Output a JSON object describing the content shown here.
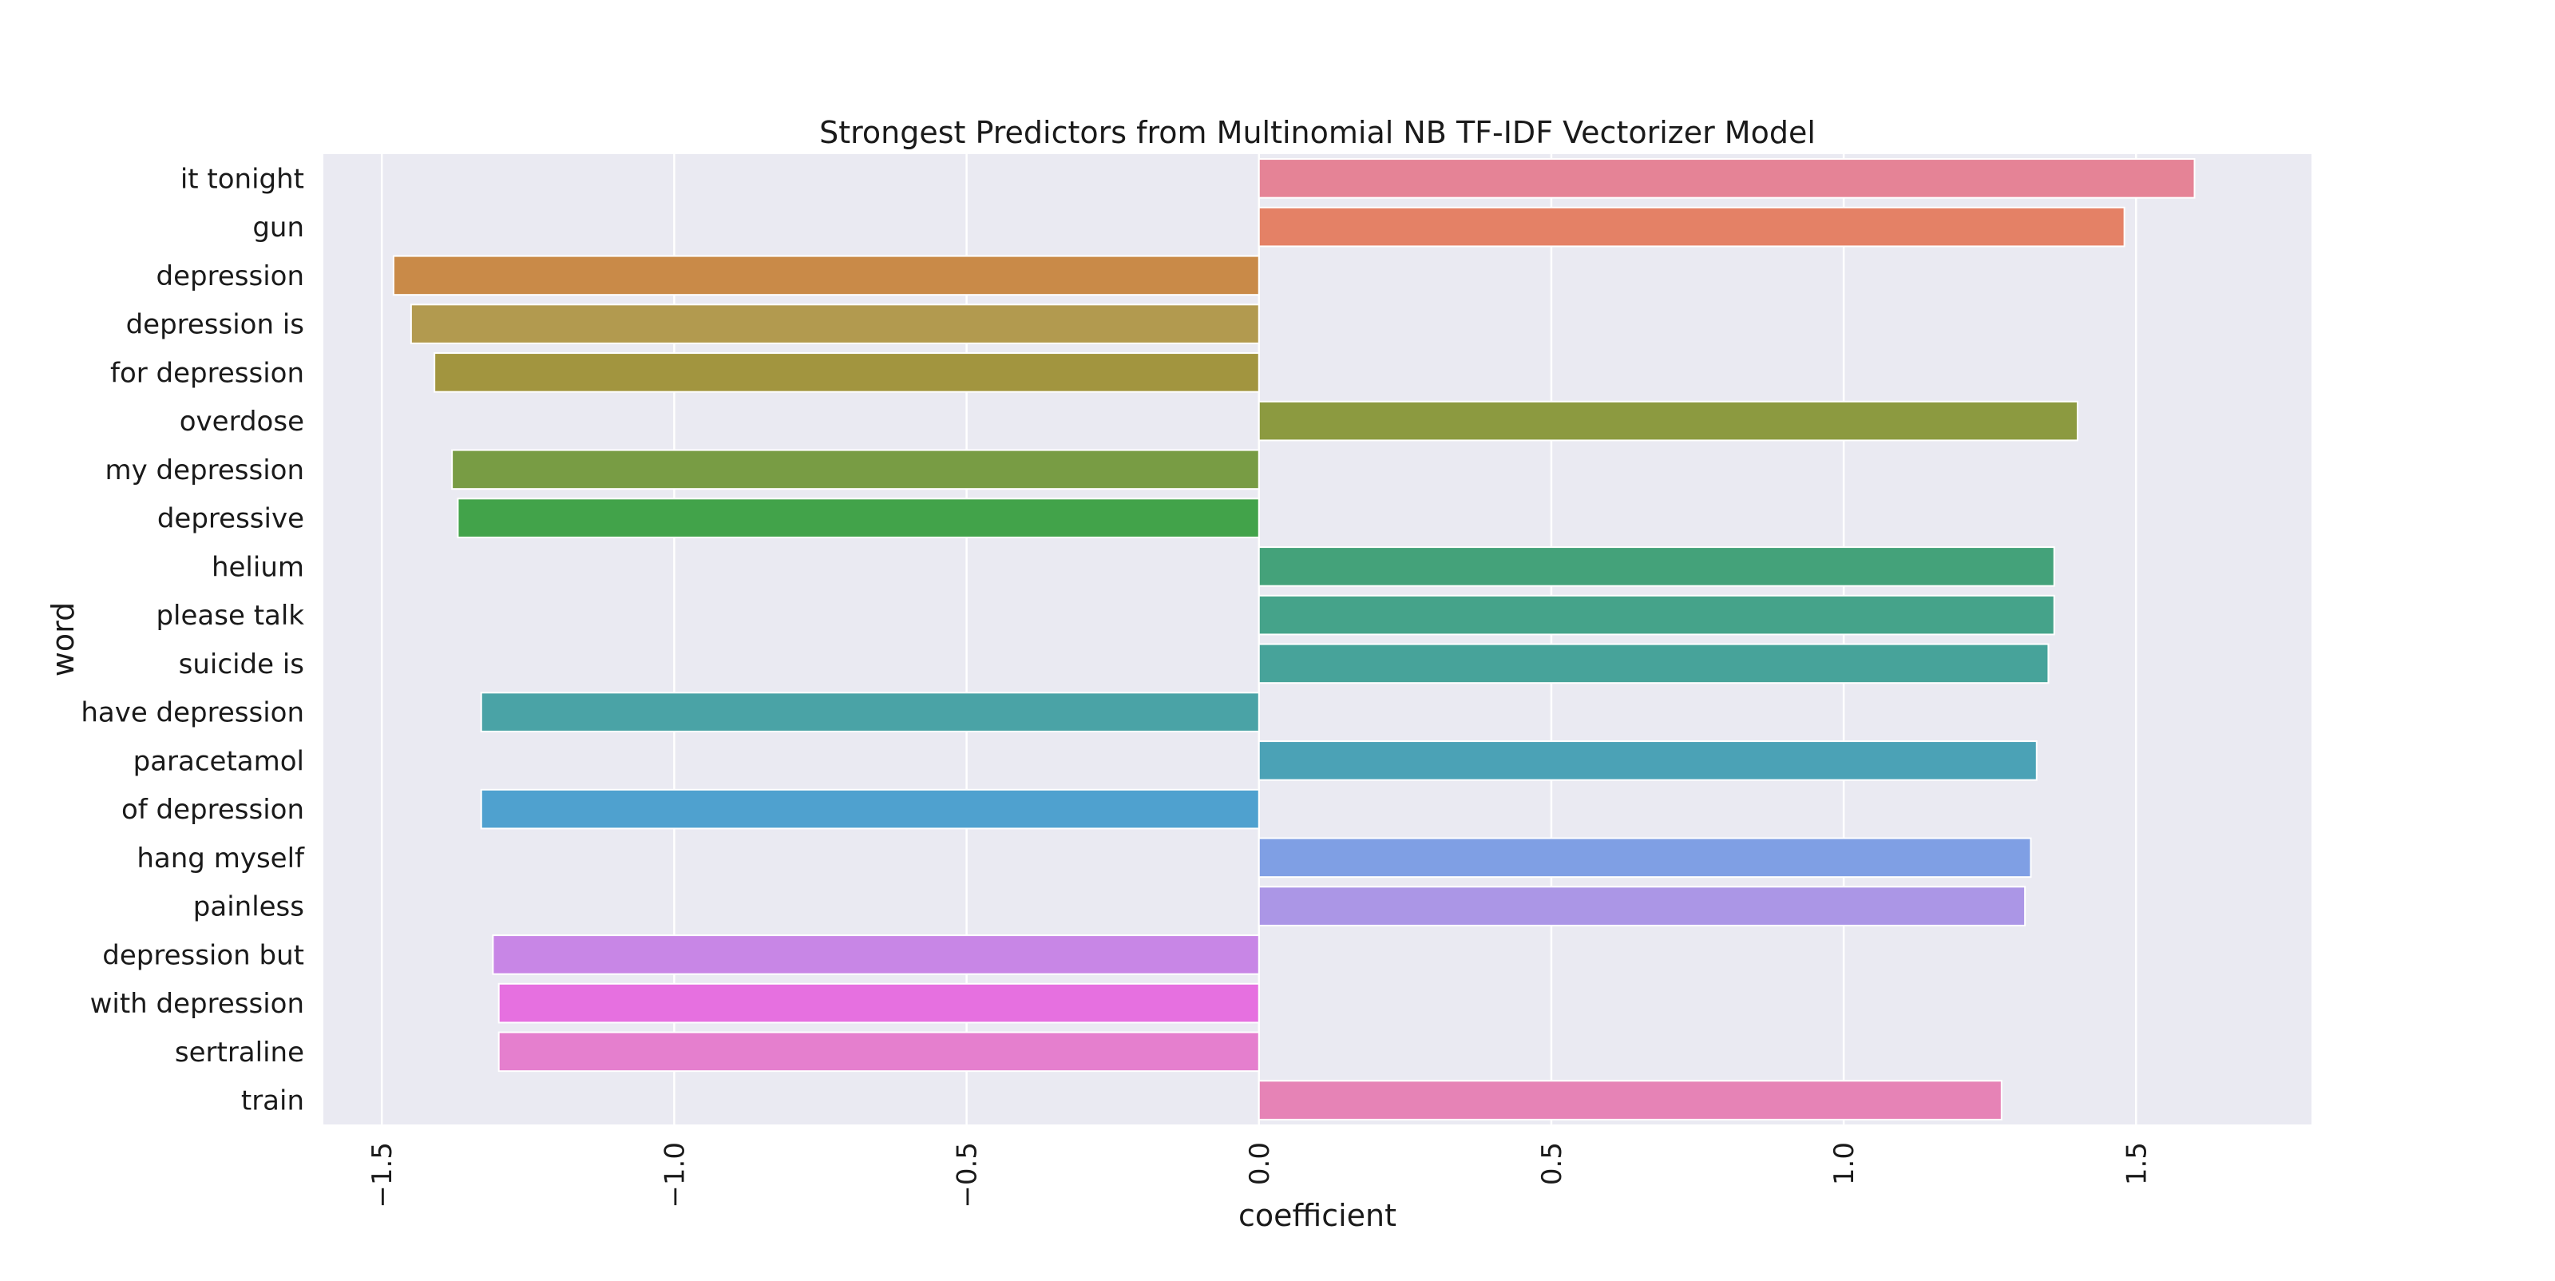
{
  "chart_data": {
    "type": "bar",
    "orientation": "horizontal",
    "title": "Strongest Predictors from Multinomial NB TF-IDF Vectorizer Model",
    "xlabel": "coefficient",
    "ylabel": "word",
    "xlim": [
      -1.6,
      1.8
    ],
    "xticks": [
      -1.5,
      -1.0,
      -0.5,
      0.0,
      0.5,
      1.0,
      1.5
    ],
    "xtick_labels": [
      "−1.5",
      "−1.0",
      "−0.5",
      "0.0",
      "0.5",
      "1.0",
      "1.5"
    ],
    "grid": true,
    "categories": [
      "it tonight",
      "gun",
      "depression",
      "depression is",
      "for depression",
      "overdose",
      "my depression",
      "depressive",
      "helium",
      "please talk",
      "suicide is",
      "have depression",
      "paracetamol",
      "of depression",
      "hang myself",
      "painless",
      "depression but",
      "with depression",
      "sertraline",
      "train"
    ],
    "values": [
      1.6,
      1.48,
      -1.48,
      -1.45,
      -1.41,
      1.4,
      -1.38,
      -1.37,
      1.36,
      1.36,
      1.35,
      -1.33,
      1.33,
      -1.33,
      1.32,
      1.31,
      -1.31,
      -1.3,
      -1.3,
      1.27
    ],
    "colors": [
      "#e58396",
      "#e48166",
      "#c98a48",
      "#b29a4f",
      "#a2953f",
      "#8c9a40",
      "#789c44",
      "#42a34a",
      "#44a27a",
      "#45a38a",
      "#47a39a",
      "#4aa3a6",
      "#4ba2b6",
      "#4fa1cf",
      "#7f9fe4",
      "#ab96e6",
      "#c886e6",
      "#e670e0",
      "#e57fce",
      "#e683b6"
    ]
  }
}
